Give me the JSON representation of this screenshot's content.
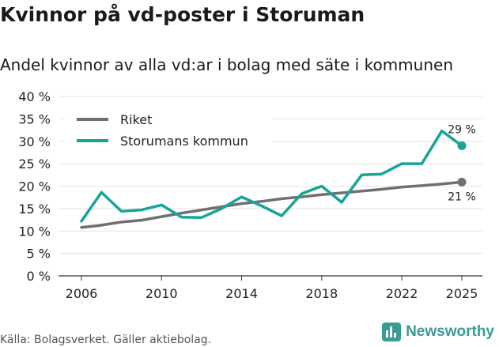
{
  "header": {
    "title": "Kvinnor på vd-poster i Storuman",
    "subtitle": "Andel kvinnor av alla vd:ar i bolag med säte i kommunen"
  },
  "footer": {
    "source": "Källa: Bolagsverket. Gäller aktiebolag.",
    "brand": "Newsworthy",
    "brand_icon": "bar-chart-icon",
    "brand_color": "#3a9b95"
  },
  "chart_data": {
    "type": "line",
    "title": "Kvinnor på vd-poster i Storuman",
    "subtitle": "Andel kvinnor av alla vd:ar i bolag med säte i kommunen",
    "xlabel": "",
    "ylabel": "",
    "xlim": [
      2006,
      2025
    ],
    "ylim": [
      0,
      40
    ],
    "yticks": [
      0,
      5,
      10,
      15,
      20,
      25,
      30,
      35,
      40
    ],
    "ytick_labels": [
      "0 %",
      "5 %",
      "10 %",
      "15 %",
      "20 %",
      "25 %",
      "30 %",
      "35 %",
      "40 %"
    ],
    "xticks": [
      2006,
      2010,
      2014,
      2018,
      2022,
      2025
    ],
    "xtick_labels": [
      "2006",
      "2010",
      "2014",
      "2018",
      "2022",
      "2025"
    ],
    "grid": true,
    "legend_position": "top-left",
    "x": [
      2006,
      2007,
      2008,
      2009,
      2010,
      2011,
      2012,
      2013,
      2014,
      2015,
      2016,
      2017,
      2018,
      2019,
      2020,
      2021,
      2022,
      2023,
      2024,
      2025
    ],
    "series": [
      {
        "name": "Riket",
        "color": "#707070",
        "values": [
          10.8,
          11.3,
          12.0,
          12.4,
          13.2,
          14.0,
          14.7,
          15.4,
          16.1,
          16.6,
          17.2,
          17.6,
          18.1,
          18.5,
          18.9,
          19.3,
          19.8,
          20.1,
          20.5,
          20.9
        ],
        "end_label": "21 %"
      },
      {
        "name": "Storumans kommun",
        "color": "#18a497",
        "values": [
          12.2,
          18.6,
          14.4,
          14.7,
          15.8,
          13.1,
          13.0,
          15.0,
          17.6,
          15.6,
          13.4,
          18.3,
          20.0,
          16.4,
          22.5,
          22.7,
          25.0,
          25.0,
          32.3,
          29.0
        ],
        "end_label": "29 %"
      }
    ]
  }
}
